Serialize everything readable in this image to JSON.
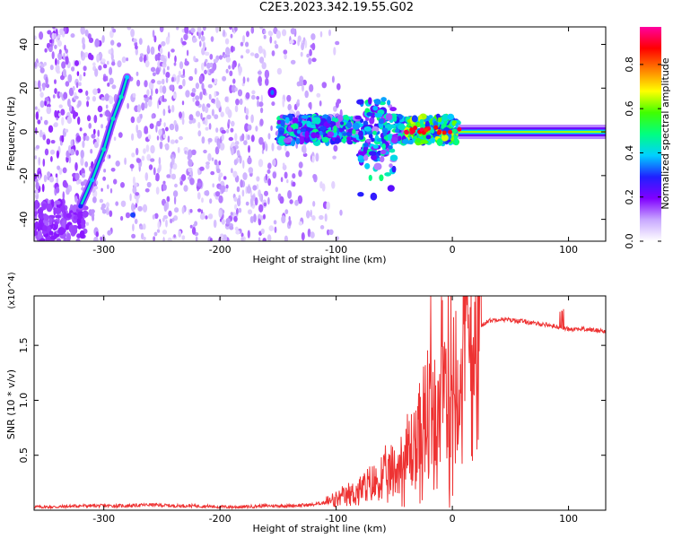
{
  "figure": {
    "title": "C2E3.2023.342.19.55.G02"
  },
  "chart_data": [
    {
      "type": "heatmap",
      "title": "C2E3.2023.342.19.55.G02",
      "xlabel": "Height of straight line (km)",
      "ylabel": "Frequency (Hz)",
      "xlim": [
        -360,
        132
      ],
      "ylim": [
        -50,
        48
      ],
      "xticks": [
        -300,
        -200,
        -100,
        0,
        100
      ],
      "yticks": [
        -40,
        -20,
        0,
        20,
        40
      ],
      "colorbar": {
        "label": "Normalized spectral amplitude",
        "range": [
          0,
          0.97
        ],
        "ticks": [
          0.0,
          0.2,
          0.4,
          0.6,
          0.8
        ],
        "colormap": [
          "#ffffff",
          "#c8a8ff",
          "#8000ff",
          "#2020ff",
          "#00d0ff",
          "#00ff80",
          "#40ff00",
          "#ffff00",
          "#ff8000",
          "#ff0000",
          "#ff00a0"
        ]
      },
      "features": {
        "carrier_track": [
          {
            "x": -320,
            "y": -34,
            "amp": 0.3
          },
          {
            "x": -310,
            "y": -22,
            "amp": 0.4
          },
          {
            "x": -300,
            "y": -8,
            "amp": 0.45
          },
          {
            "x": -292,
            "y": 6,
            "amp": 0.45
          },
          {
            "x": -285,
            "y": 16,
            "amp": 0.45
          },
          {
            "x": -280,
            "y": 25,
            "amp": 0.4
          }
        ],
        "steady_line": {
          "x_start": 5,
          "x_end": 132,
          "y": 0,
          "amp": 0.65
        },
        "scattered_band": {
          "x_start": -150,
          "x_end": 5,
          "y_center": 1,
          "amp": 0.35
        }
      }
    },
    {
      "type": "line",
      "xlabel": "Height of straight line (km)",
      "ylabel": "SNR (10 * v/v)",
      "y_multiplier": "(x10^4)",
      "xlim": [
        -360,
        132
      ],
      "ylim": [
        0,
        1.95
      ],
      "xticks": [
        -300,
        -200,
        -100,
        0,
        100
      ],
      "yticks": [
        0.5,
        1.0,
        1.5
      ],
      "color": "#ee3333",
      "series": [
        {
          "x": [
            -360,
            -340,
            -320,
            -300,
            -280,
            -260,
            -240,
            -220,
            -200,
            -180,
            -160,
            -140,
            -120,
            -110,
            -100,
            -90,
            -80,
            -70,
            -60,
            -50,
            -45,
            -40,
            -35,
            -30,
            -25,
            -20,
            -15,
            -10,
            -5,
            0,
            5,
            10,
            15,
            20,
            25,
            30,
            35,
            40,
            50,
            60,
            70,
            80,
            90,
            95,
            100,
            110,
            120,
            132
          ],
          "y": [
            0.03,
            0.03,
            0.04,
            0.04,
            0.04,
            0.05,
            0.04,
            0.04,
            0.03,
            0.03,
            0.04,
            0.04,
            0.05,
            0.07,
            0.09,
            0.13,
            0.18,
            0.22,
            0.28,
            0.33,
            0.42,
            0.48,
            0.55,
            0.62,
            0.72,
            0.82,
            0.92,
            1.0,
            1.1,
            1.2,
            1.32,
            1.45,
            1.55,
            1.62,
            1.68,
            1.72,
            1.73,
            1.74,
            1.73,
            1.72,
            1.7,
            1.69,
            1.67,
            1.66,
            1.65,
            1.65,
            1.64,
            1.63
          ]
        }
      ]
    }
  ]
}
